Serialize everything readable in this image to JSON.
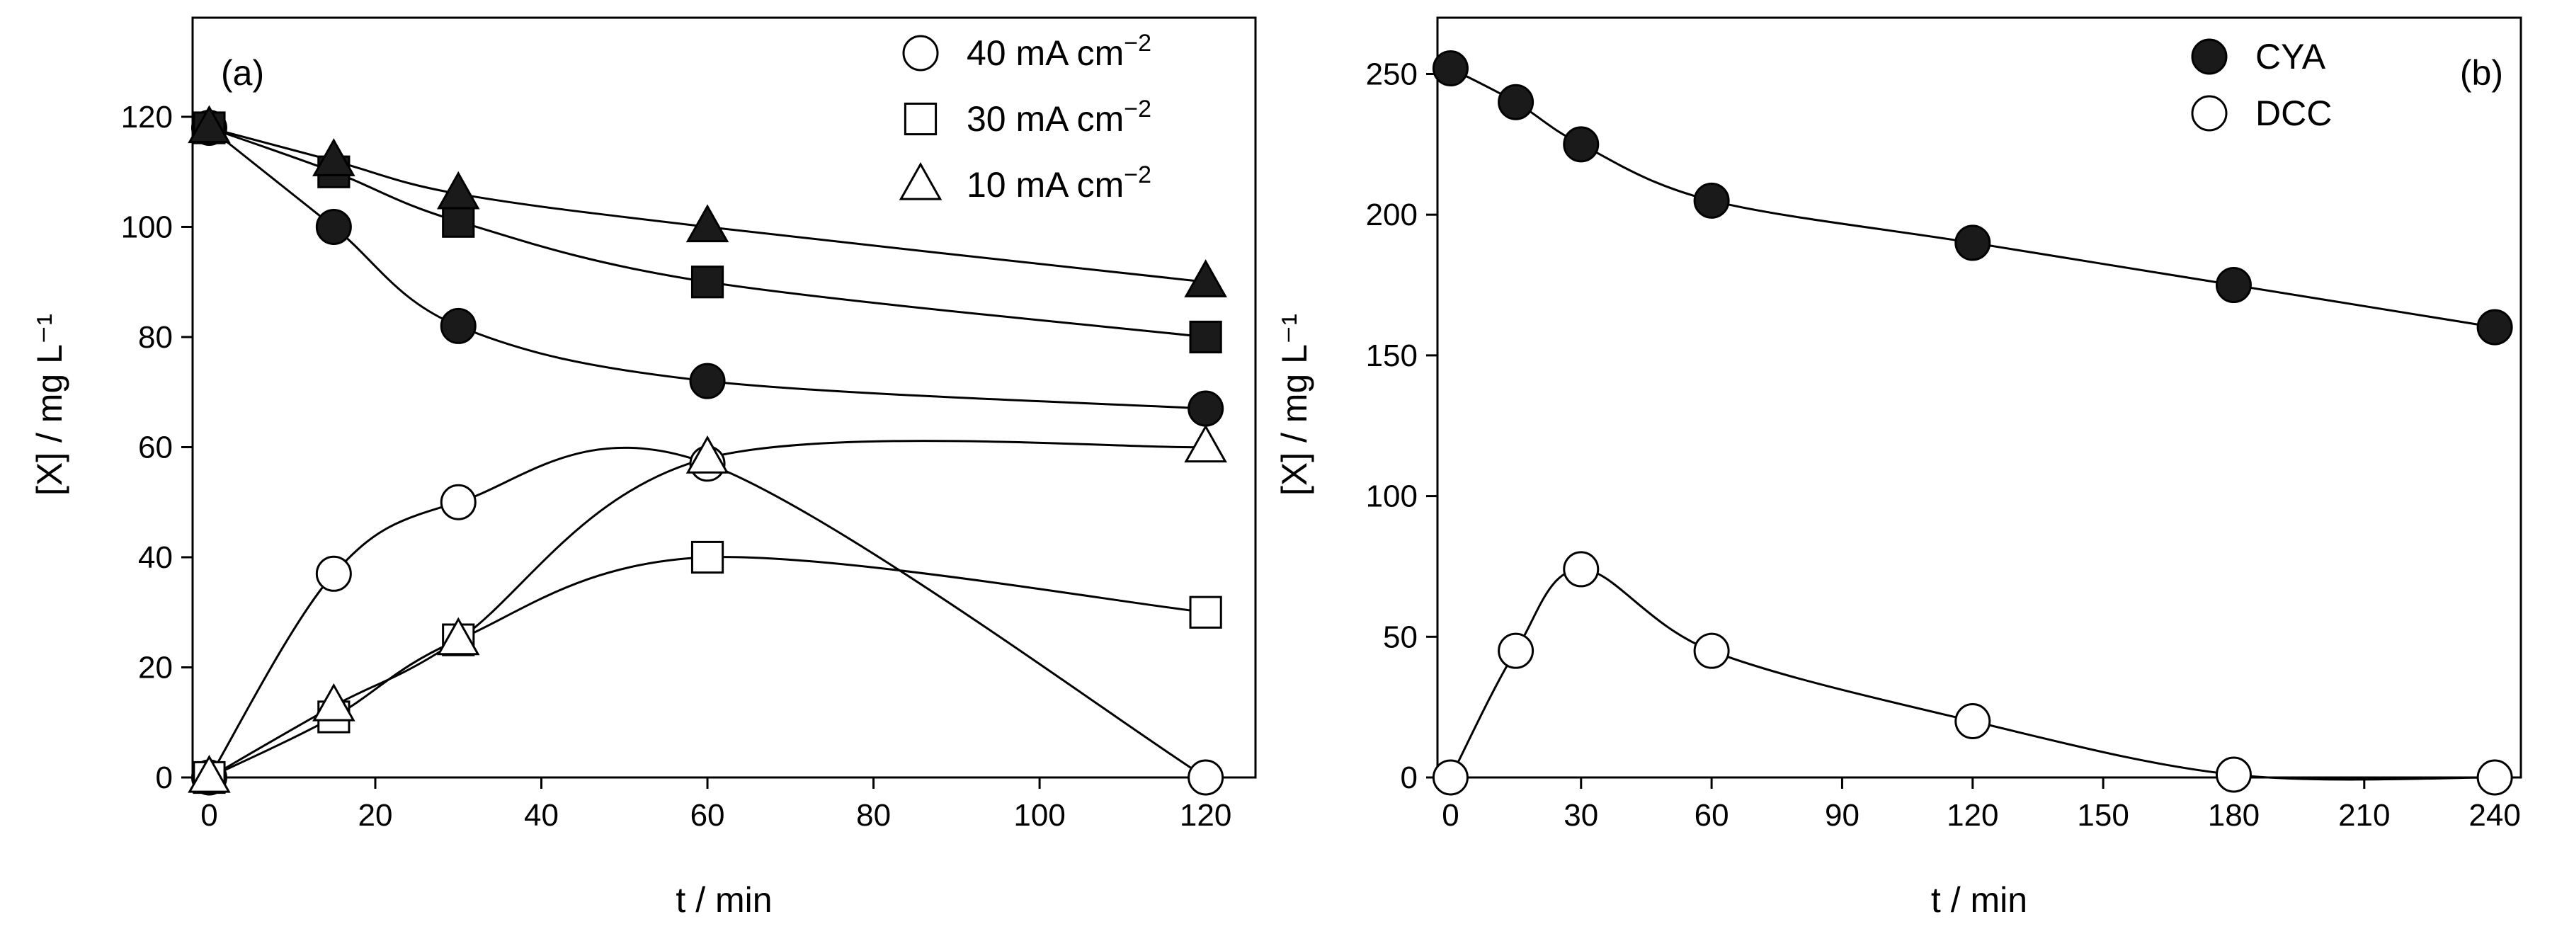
{
  "chart_data": [
    {
      "type": "scatter",
      "panel_label": "(a)",
      "xlabel": "t / min",
      "ylabel": "[X] / mg L⁻¹",
      "xlim": [
        -2,
        126
      ],
      "ylim": [
        0,
        138
      ],
      "xticks": [
        0,
        20,
        40,
        60,
        80,
        100,
        120
      ],
      "yticks": [
        0,
        20,
        40,
        60,
        80,
        100,
        120
      ],
      "legend_position": "top-right",
      "legend": [
        {
          "marker": "circle",
          "label": "40 mA cm",
          "exponent": "−2"
        },
        {
          "marker": "square",
          "label": "30 mA cm",
          "exponent": "−2"
        },
        {
          "marker": "triangle",
          "label": "10 mA cm",
          "exponent": "−2"
        }
      ],
      "series": [
        {
          "name": "CYA 40 mA cm-2",
          "marker": "circle",
          "filled": true,
          "x": [
            0,
            15,
            30,
            60,
            120
          ],
          "y": [
            118,
            100,
            82,
            72,
            67
          ]
        },
        {
          "name": "CYA 30 mA cm-2",
          "marker": "square",
          "filled": true,
          "x": [
            0,
            15,
            30,
            60,
            120
          ],
          "y": [
            118,
            110,
            101,
            90,
            80
          ]
        },
        {
          "name": "CYA 10 mA cm-2",
          "marker": "triangle",
          "filled": true,
          "x": [
            0,
            15,
            30,
            60,
            120
          ],
          "y": [
            118,
            112,
            106,
            100,
            90
          ]
        },
        {
          "name": "DCC 40 mA cm-2",
          "marker": "circle",
          "filled": false,
          "x": [
            0,
            15,
            30,
            60,
            120
          ],
          "y": [
            0,
            37,
            50,
            57,
            0
          ]
        },
        {
          "name": "DCC 30 mA cm-2",
          "marker": "square",
          "filled": false,
          "x": [
            0,
            15,
            30,
            60,
            120
          ],
          "y": [
            0,
            11,
            25,
            40,
            30
          ]
        },
        {
          "name": "DCC 10 mA cm-2",
          "marker": "triangle",
          "filled": false,
          "x": [
            0,
            15,
            30,
            60,
            120
          ],
          "y": [
            0,
            13,
            25,
            58,
            60
          ]
        }
      ]
    },
    {
      "type": "scatter",
      "panel_label": "(b)",
      "xlabel": "t / min",
      "ylabel": "[X] / mg L⁻¹",
      "xlim": [
        -3,
        246
      ],
      "ylim": [
        0,
        270
      ],
      "xticks": [
        0,
        30,
        60,
        90,
        120,
        150,
        180,
        210,
        240
      ],
      "yticks": [
        0,
        50,
        100,
        150,
        200,
        250
      ],
      "legend_position": "top-right",
      "legend": [
        {
          "marker": "circle",
          "filled": true,
          "label": "CYA"
        },
        {
          "marker": "circle",
          "filled": false,
          "label": "DCC"
        }
      ],
      "series": [
        {
          "name": "CYA",
          "marker": "circle",
          "filled": true,
          "x": [
            0,
            15,
            30,
            60,
            120,
            180,
            240
          ],
          "y": [
            252,
            240,
            225,
            205,
            190,
            175,
            160
          ]
        },
        {
          "name": "DCC",
          "marker": "circle",
          "filled": false,
          "x": [
            0,
            15,
            30,
            60,
            120,
            180,
            240
          ],
          "y": [
            0,
            45,
            74,
            45,
            20,
            1,
            0
          ]
        }
      ]
    }
  ]
}
